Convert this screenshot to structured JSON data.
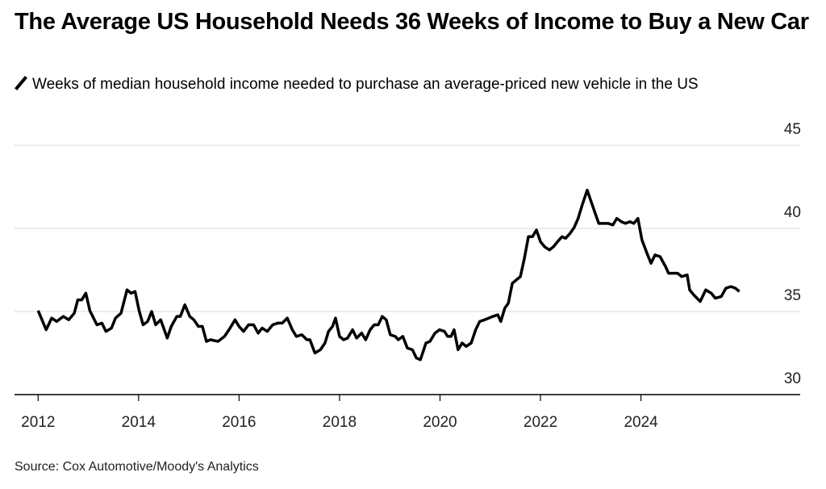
{
  "chart_data": {
    "type": "line",
    "title": "The Average US Household Needs 36 Weeks of Income to Buy a New Car",
    "subtitle": "Weeks of median household income needed to purchase an average-priced new vehicle in the US",
    "source": "Source: Cox Automotive/Moody's Analytics",
    "x": [
      2012.0,
      2012.16,
      2012.27,
      2012.37,
      2012.5,
      2012.61,
      2012.72,
      2012.79,
      2012.87,
      2012.95,
      2013.03,
      2013.17,
      2013.27,
      2013.35,
      2013.46,
      2013.54,
      2013.65,
      2013.77,
      2013.85,
      2013.93,
      2014.01,
      2014.09,
      2014.18,
      2014.26,
      2014.34,
      2014.44,
      2014.57,
      2014.65,
      2014.76,
      2014.83,
      2014.92,
      2015.02,
      2015.1,
      2015.19,
      2015.27,
      2015.35,
      2015.43,
      2015.58,
      2015.71,
      2015.8,
      2015.92,
      2016.0,
      2016.09,
      2016.19,
      2016.29,
      2016.38,
      2016.46,
      2016.56,
      2016.67,
      2016.77,
      2016.86,
      2016.96,
      2017.06,
      2017.14,
      2017.25,
      2017.35,
      2017.41,
      2017.51,
      2017.62,
      2017.71,
      2017.78,
      2017.86,
      2017.92,
      2018.0,
      2018.08,
      2018.16,
      2018.26,
      2018.34,
      2018.44,
      2018.52,
      2018.61,
      2018.69,
      2018.77,
      2018.85,
      2018.93,
      2019.01,
      2019.11,
      2019.17,
      2019.26,
      2019.35,
      2019.45,
      2019.53,
      2019.61,
      2019.72,
      2019.8,
      2019.9,
      2019.99,
      2020.09,
      2020.15,
      2020.22,
      2020.28,
      2020.36,
      2020.44,
      2020.52,
      2020.62,
      2020.71,
      2020.79,
      2020.89,
      2020.97,
      2021.05,
      2021.15,
      2021.21,
      2021.29,
      2021.36,
      2021.44,
      2021.52,
      2021.6,
      2021.68,
      2021.76,
      2021.84,
      2021.92,
      2022.0,
      2022.08,
      2022.18,
      2022.26,
      2022.34,
      2022.43,
      2022.5,
      2022.59,
      2022.67,
      2022.75,
      2022.83,
      2022.93,
      2023.01,
      2023.09,
      2023.16,
      2023.25,
      2023.35,
      2023.44,
      2023.52,
      2023.61,
      2023.69,
      2023.78,
      2023.86,
      2023.94,
      2024.02,
      2024.12,
      2024.2,
      2024.28,
      2024.38,
      2024.49,
      2024.55,
      2024.65,
      2024.73,
      2024.81,
      2024.92,
      2024.97,
      2025.05,
      2025.18,
      2025.29,
      2025.4,
      2025.48,
      2025.6,
      2025.69,
      2025.79,
      2025.88,
      2025.96
    ],
    "series": [
      {
        "name": "Weeks of median household income",
        "color": "#000000",
        "values": [
          35.05,
          33.9,
          34.6,
          34.4,
          34.7,
          34.5,
          34.9,
          35.7,
          35.7,
          36.1,
          35.05,
          34.2,
          34.3,
          33.8,
          34.0,
          34.6,
          34.9,
          36.3,
          36.1,
          36.2,
          35.05,
          34.2,
          34.4,
          35.0,
          34.2,
          34.5,
          33.4,
          34.1,
          34.7,
          34.7,
          35.4,
          34.7,
          34.5,
          34.1,
          34.1,
          33.2,
          33.3,
          33.2,
          33.5,
          33.9,
          34.5,
          34.1,
          33.8,
          34.2,
          34.2,
          33.7,
          34.0,
          33.8,
          34.2,
          34.3,
          34.3,
          34.6,
          33.9,
          33.5,
          33.6,
          33.3,
          33.3,
          32.5,
          32.7,
          33.1,
          33.8,
          34.1,
          34.6,
          33.5,
          33.3,
          33.4,
          33.9,
          33.4,
          33.7,
          33.3,
          33.9,
          34.2,
          34.2,
          34.7,
          34.5,
          33.6,
          33.5,
          33.3,
          33.5,
          32.8,
          32.7,
          32.2,
          32.1,
          33.1,
          33.2,
          33.7,
          33.9,
          33.8,
          33.5,
          33.5,
          33.9,
          32.7,
          33.1,
          32.9,
          33.1,
          33.9,
          34.4,
          34.5,
          34.6,
          34.7,
          34.8,
          34.4,
          35.2,
          35.5,
          36.7,
          36.9,
          37.1,
          38.2,
          39.5,
          39.5,
          39.9,
          39.2,
          38.9,
          38.7,
          38.9,
          39.2,
          39.5,
          39.4,
          39.7,
          40.05,
          40.6,
          41.4,
          42.3,
          41.6,
          40.9,
          40.3,
          40.3,
          40.3,
          40.2,
          40.6,
          40.4,
          40.3,
          40.4,
          40.3,
          40.6,
          39.3,
          38.5,
          37.9,
          38.4,
          38.3,
          37.7,
          37.3,
          37.3,
          37.3,
          37.1,
          37.2,
          36.3,
          36.0,
          35.6,
          36.3,
          36.1,
          35.8,
          35.9,
          36.4,
          36.5,
          36.4,
          36.2
        ]
      }
    ],
    "xlim": [
      2011.53,
      2027.17
    ],
    "xticks": [
      2012,
      2014,
      2016,
      2018,
      2020,
      2022,
      2024
    ],
    "ylim": [
      30,
      45
    ],
    "yticks": [
      30,
      35,
      40,
      45
    ],
    "grid": true
  }
}
